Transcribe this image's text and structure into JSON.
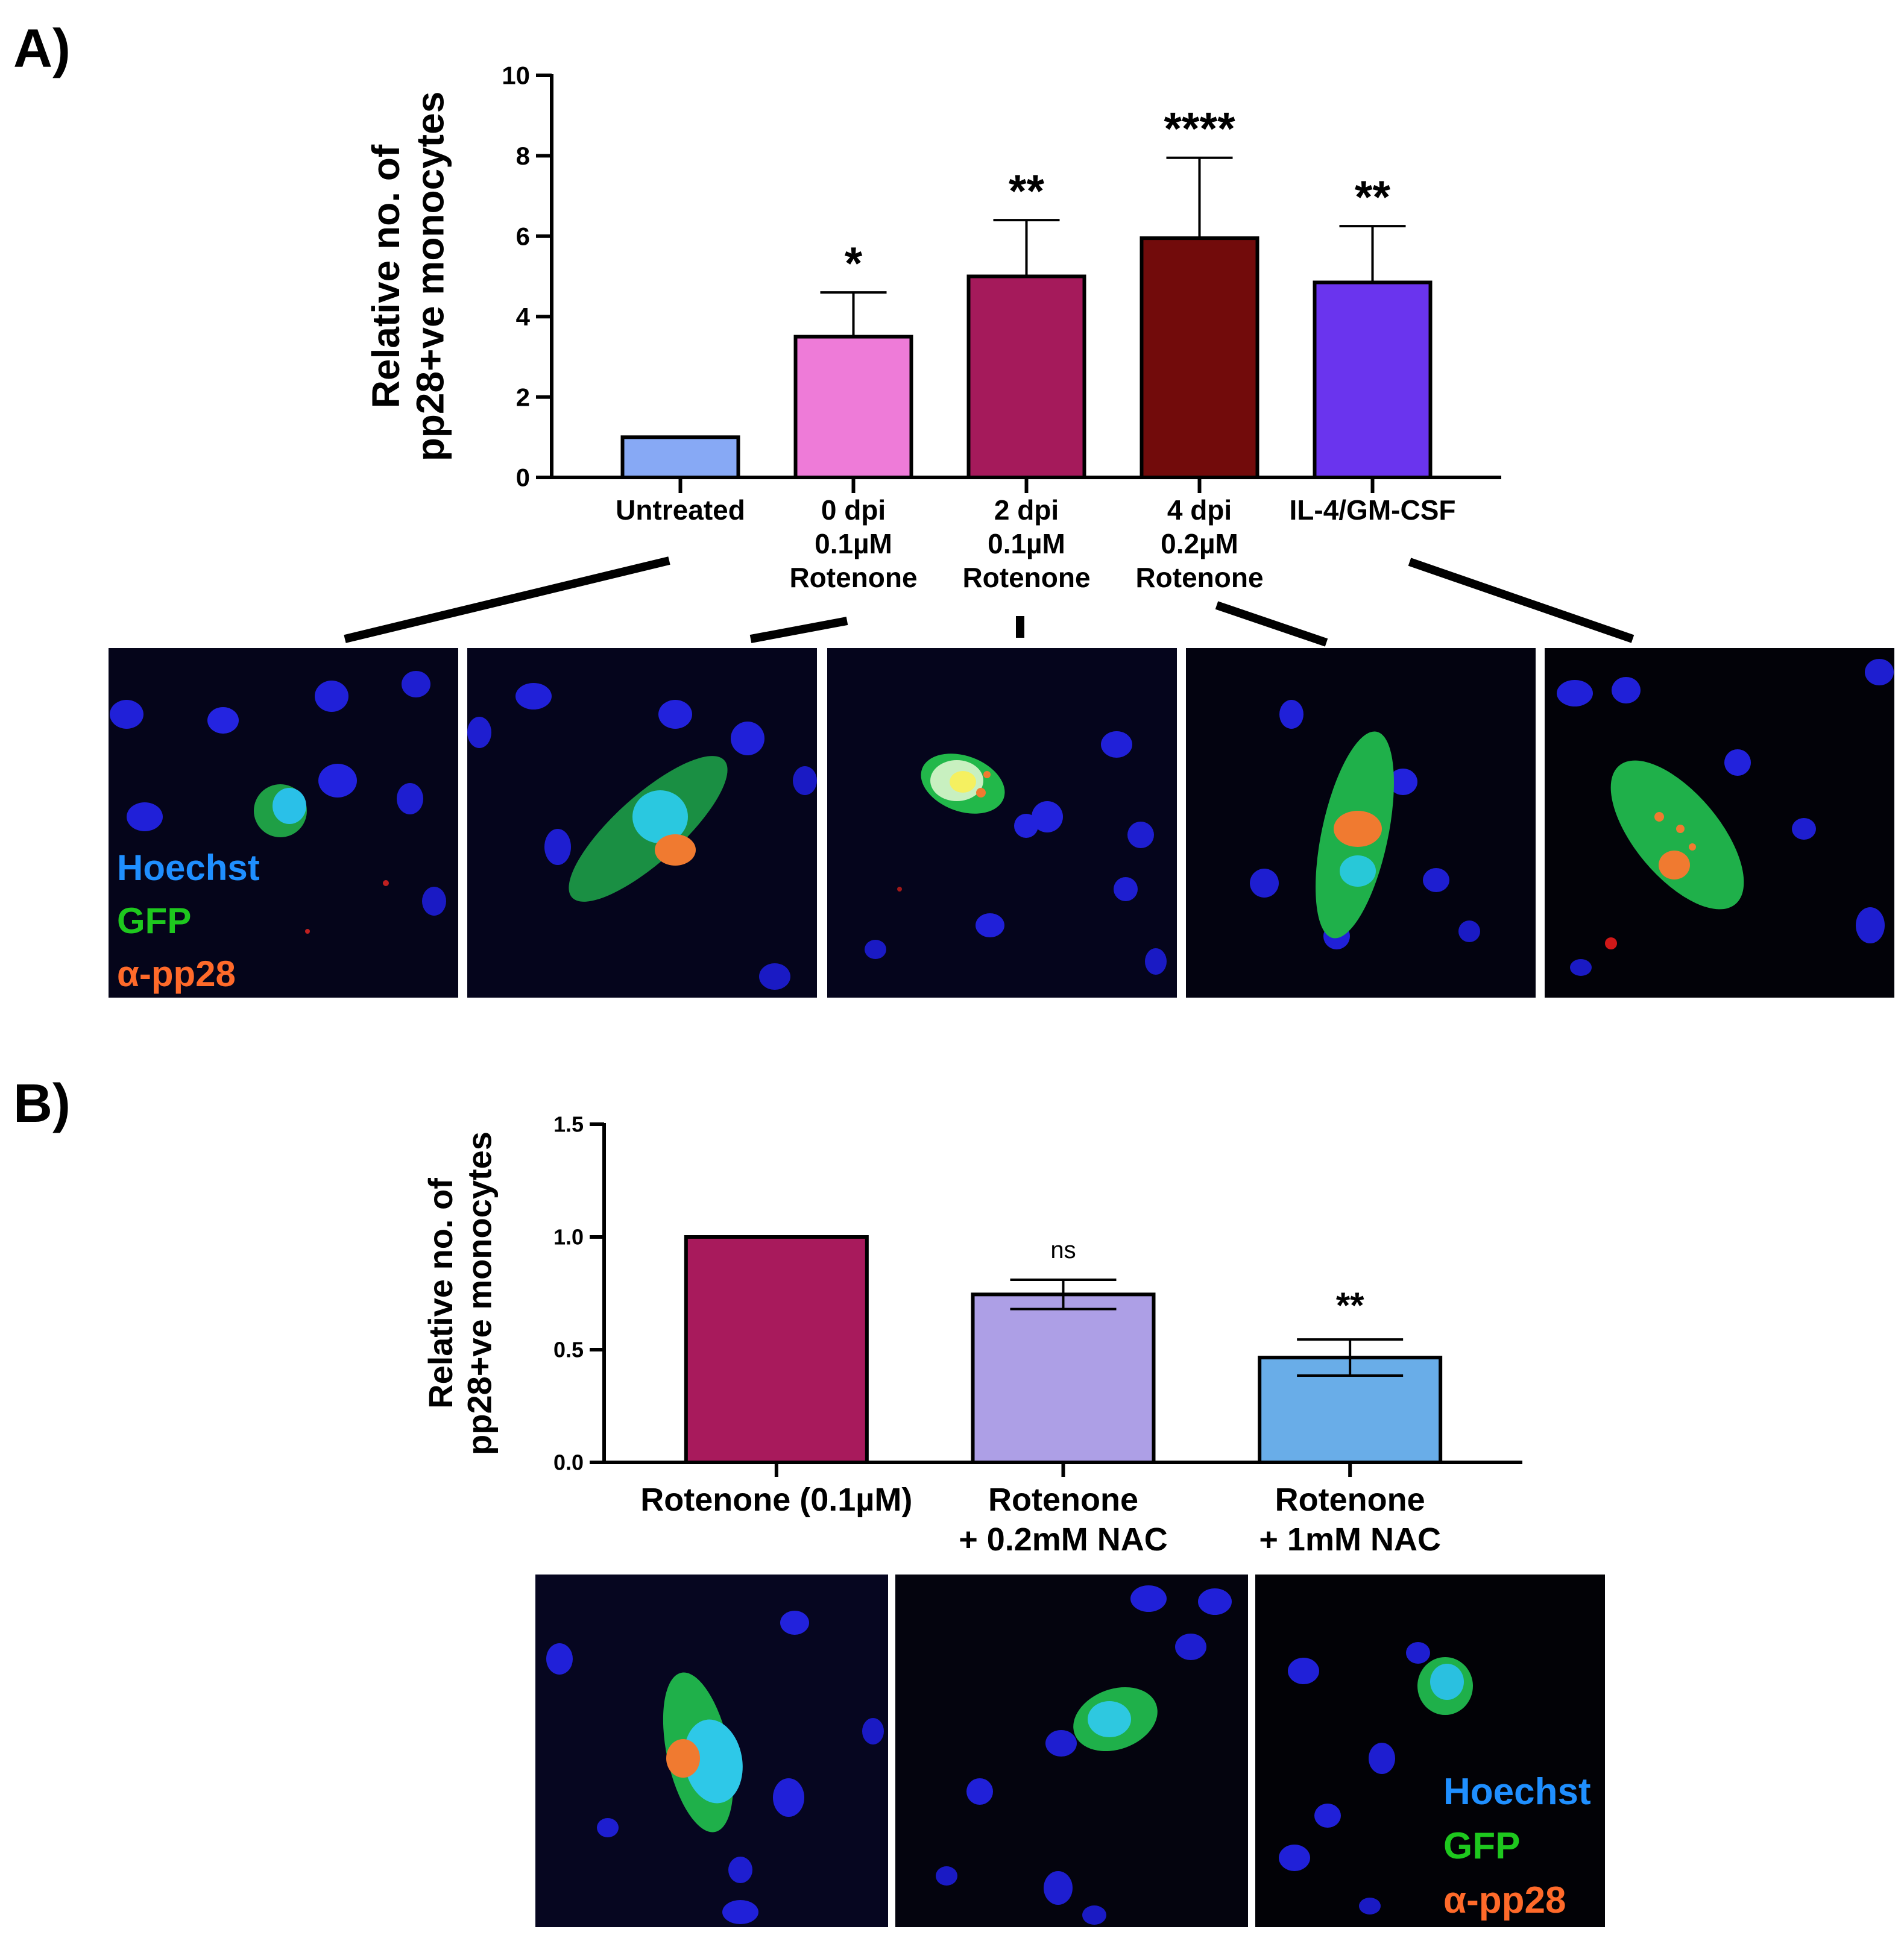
{
  "panels": [
    {
      "label": "A)"
    },
    {
      "label": "B)"
    }
  ],
  "legend": [
    {
      "label": "Hoechst",
      "color": "#1f8fff"
    },
    {
      "label": "GFP",
      "color": "#1ec81e"
    },
    {
      "label": "α-pp28",
      "color": "#ff6a2a"
    }
  ],
  "chart_data": [
    {
      "type": "bar",
      "panel": "A)",
      "ylabel": [
        "Relative no. of",
        "pp28+ve monocytes"
      ],
      "ylim": [
        0,
        10
      ],
      "yticks": [
        "0",
        "2",
        "4",
        "6",
        "8",
        "10"
      ],
      "categories": [
        [
          "Untreated"
        ],
        [
          "0 dpi",
          "0.1µM",
          "Rotenone"
        ],
        [
          "2 dpi",
          "0.1µM",
          "Rotenone"
        ],
        [
          "4 dpi",
          "0.2µM",
          "Rotenone"
        ],
        [
          "IL-4/GM-CSF"
        ]
      ],
      "values": [
        1.0,
        3.5,
        5.0,
        5.95,
        4.85
      ],
      "errors": [
        0,
        1.1,
        1.4,
        2.0,
        1.4
      ],
      "significance": [
        "",
        "*",
        "**",
        "****",
        "**"
      ],
      "colors": [
        "#87a9f5",
        "#ee7bd8",
        "#a51a5b",
        "#720b0b",
        "#6a34ee"
      ],
      "grid": false
    },
    {
      "type": "bar",
      "panel": "B)",
      "ylabel": [
        "Relative no. of",
        "pp28+ve monocytes"
      ],
      "ylim": [
        0,
        1.5
      ],
      "yticks": [
        "0.0",
        "0.5",
        "1.0",
        "1.5"
      ],
      "categories": [
        [
          "Rotenone (0.1µM)"
        ],
        [
          "Rotenone",
          "+ 0.2mM NAC"
        ],
        [
          "Rotenone",
          "+ 1mM NAC"
        ]
      ],
      "values": [
        1.0,
        0.745,
        0.465
      ],
      "errors": [
        0,
        0.065,
        0.08
      ],
      "significance": [
        "",
        "ns",
        "**"
      ],
      "colors": [
        "#a81a5c",
        "#ad9fe6",
        "#69ade8"
      ],
      "grid": false
    }
  ]
}
